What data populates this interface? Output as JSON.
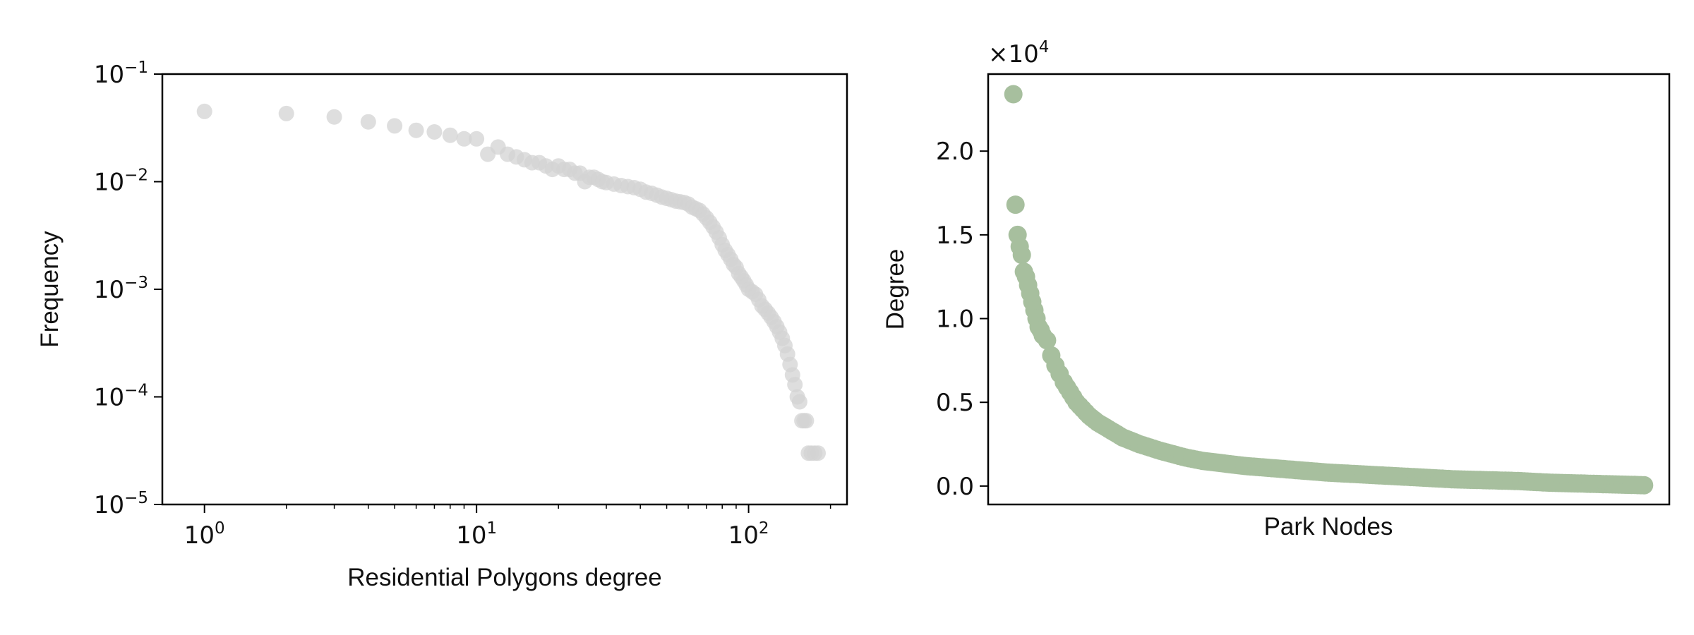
{
  "chart_data": [
    {
      "type": "scatter",
      "title": "",
      "xlabel": "Residential Polygons degree",
      "ylabel": "Frequency",
      "xscale": "log",
      "yscale": "log",
      "xlim": [
        0.7,
        230
      ],
      "ylim": [
        1e-05,
        0.1
      ],
      "xticks": [
        {
          "base": "10",
          "exp": "0"
        },
        {
          "base": "10",
          "exp": "1"
        },
        {
          "base": "10",
          "exp": "2"
        }
      ],
      "yticks": [
        {
          "base": "10",
          "exp": "−1"
        },
        {
          "base": "10",
          "exp": "−2"
        },
        {
          "base": "10",
          "exp": "−3"
        },
        {
          "base": "10",
          "exp": "−4"
        },
        {
          "base": "10",
          "exp": "−5"
        }
      ],
      "grid": false,
      "marker_color": "#d3d3d3",
      "x": [
        1,
        2,
        3,
        4,
        5,
        6,
        7,
        8,
        9,
        10,
        11,
        12,
        13,
        14,
        15,
        16,
        17,
        18,
        19,
        20,
        21,
        22,
        23,
        24,
        25,
        26,
        27,
        28,
        29,
        30,
        32,
        34,
        36,
        38,
        40,
        42,
        44,
        46,
        48,
        50,
        52,
        54,
        56,
        58,
        60,
        62,
        64,
        66,
        68,
        70,
        72,
        74,
        76,
        78,
        80,
        82,
        84,
        86,
        88,
        90,
        92,
        94,
        96,
        98,
        100,
        103,
        106,
        109,
        112,
        115,
        118,
        121,
        124,
        127,
        130,
        133,
        136,
        139,
        142,
        145,
        148,
        151,
        154,
        157,
        160,
        163,
        166,
        170,
        175,
        180
      ],
      "y": [
        0.045,
        0.043,
        0.04,
        0.036,
        0.033,
        0.03,
        0.029,
        0.027,
        0.025,
        0.025,
        0.018,
        0.021,
        0.018,
        0.017,
        0.016,
        0.015,
        0.015,
        0.014,
        0.013,
        0.014,
        0.013,
        0.013,
        0.012,
        0.012,
        0.01,
        0.011,
        0.011,
        0.0105,
        0.01,
        0.0098,
        0.0095,
        0.0092,
        0.009,
        0.0088,
        0.0085,
        0.008,
        0.0078,
        0.0075,
        0.0072,
        0.007,
        0.0068,
        0.0066,
        0.0065,
        0.0064,
        0.0062,
        0.0058,
        0.0056,
        0.0054,
        0.005,
        0.0046,
        0.0042,
        0.0038,
        0.0034,
        0.003,
        0.0026,
        0.0023,
        0.0021,
        0.0019,
        0.0017,
        0.0016,
        0.0014,
        0.0013,
        0.0012,
        0.0011,
        0.001,
        0.00095,
        0.0009,
        0.0008,
        0.0007,
        0.00065,
        0.0006,
        0.00055,
        0.0005,
        0.00045,
        0.0004,
        0.00035,
        0.0003,
        0.00025,
        0.0002,
        0.00016,
        0.00013,
        0.0001,
        9e-05,
        6e-05,
        6e-05,
        6e-05,
        3e-05,
        3e-05,
        3e-05,
        3e-05
      ]
    },
    {
      "type": "scatter",
      "title": "",
      "xlabel": "Park Nodes",
      "ylabel": "Degree",
      "scale_factor": {
        "base": "×10",
        "exp": "4"
      },
      "ylim": [
        -0.11,
        2.46
      ],
      "yticks": [
        "0.0",
        "0.5",
        "1.0",
        "1.5",
        "2.0"
      ],
      "xticks": [],
      "grid": false,
      "marker_color": "#a7bf9e",
      "x": [
        0,
        1,
        2,
        3,
        4,
        5,
        6,
        7,
        8,
        9,
        10,
        11,
        12,
        13,
        14,
        16,
        18,
        20,
        22,
        24,
        27,
        30,
        33,
        36,
        40,
        44,
        48,
        52,
        56,
        60,
        65,
        70,
        76,
        82,
        90,
        100,
        110,
        120,
        130,
        140,
        150,
        165,
        180,
        195,
        210,
        225,
        240,
        255,
        270,
        285,
        300
      ],
      "y": [
        2.34,
        1.68,
        1.5,
        1.43,
        1.38,
        1.28,
        1.25,
        1.2,
        1.15,
        1.1,
        1.05,
        1.0,
        0.95,
        0.93,
        0.9,
        0.87,
        0.78,
        0.72,
        0.67,
        0.62,
        0.56,
        0.5,
        0.46,
        0.42,
        0.38,
        0.35,
        0.32,
        0.29,
        0.27,
        0.25,
        0.23,
        0.21,
        0.19,
        0.17,
        0.15,
        0.135,
        0.12,
        0.11,
        0.1,
        0.09,
        0.08,
        0.07,
        0.06,
        0.05,
        0.04,
        0.035,
        0.03,
        0.02,
        0.015,
        0.01,
        0.005
      ]
    }
  ]
}
